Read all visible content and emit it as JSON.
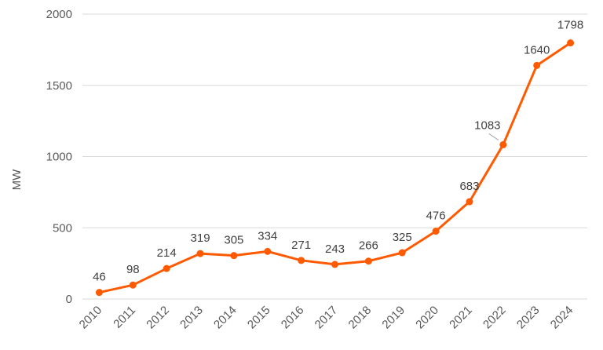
{
  "chart_data": {
    "type": "line",
    "title": "",
    "xlabel": "",
    "ylabel": "MW",
    "ylim": [
      0,
      2000
    ],
    "yticks": [
      0,
      500,
      1000,
      1500,
      2000
    ],
    "grid": true,
    "legend": "none",
    "categories": [
      "2010",
      "2011",
      "2012",
      "2013",
      "2014",
      "2015",
      "2016",
      "2017",
      "2018",
      "2019",
      "2020",
      "2021",
      "2022",
      "2023",
      "2024"
    ],
    "series": [
      {
        "values": [
          46,
          98,
          214,
          319,
          305,
          334,
          271,
          243,
          266,
          325,
          476,
          683,
          1083,
          1640,
          1798
        ],
        "data_labels": [
          "46",
          "98",
          "214",
          "319",
          "305",
          "334",
          "271",
          "243",
          "266",
          "325",
          "476",
          "683",
          "1083",
          "1640",
          "1798"
        ],
        "color": "#ff5a00"
      }
    ]
  }
}
